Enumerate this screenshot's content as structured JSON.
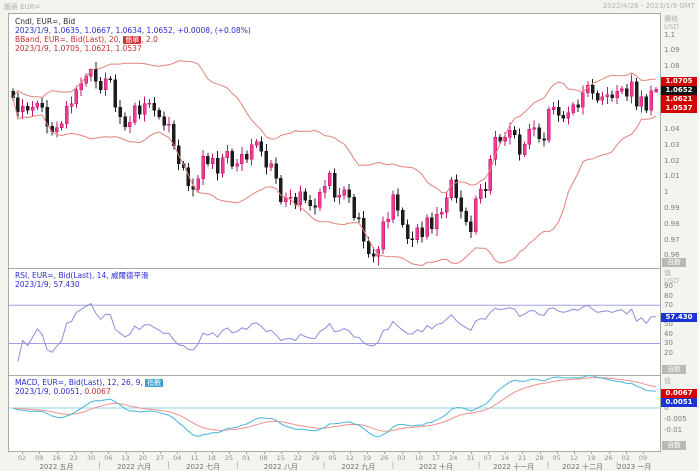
{
  "window": {
    "title_left": "圖表 EUR=",
    "title_right": "2022/4/26 - 2023/1/9 GMT"
  },
  "colors": {
    "up_fill": "#ee3a92",
    "up_stroke": "#c01570",
    "down": "#1c1c1c",
    "bband_line": "#e4837b",
    "rsi_line": "#8c8cdf",
    "rsi_level": "#a0a0e4",
    "macd_line": "#49b6da",
    "macd_signal": "#f0928a",
    "macd_zero": "#8fd4ea",
    "divider": "#a9aba5",
    "badge_red": "#d40000",
    "badge_black": "#141414",
    "badge_blue": "#1a35d4"
  },
  "legends": {
    "main": {
      "line1": "Cndl, EUR=, Bid",
      "line2": "2023/1/9, 1.0635, 1.0667, 1.0634, 1.0652, +0.0008, (+0.08%)",
      "line3_prefix": "BBand, EUR=, Bid(Last), 20, ",
      "line3_chip": "簡單",
      "line3_suffix": ", 2.0",
      "line4": "2023/1/9, 1.0705, 1.0621, 1.0537"
    },
    "rsi": {
      "line1": "RSI, EUR=, Bid(Last), 14, 威爾德平滑",
      "line2": "2023/1/9, 57.430"
    },
    "macd": {
      "line1_prefix": "MACD, EUR=, Bid(Last), 12, 26, 9, ",
      "line1_chip": "指數",
      "line2_date": "2023/1/9, ",
      "line2_macd": "0.0051, ",
      "line2_signal": "0.0067"
    }
  },
  "axes": {
    "main": {
      "title": "價格",
      "unit": "USD",
      "auto": "自動",
      "tick_values": [
        1.1,
        1.09,
        1.08,
        1.04,
        1.03,
        1.02,
        1.01,
        1,
        0.99,
        0.98,
        0.97,
        0.96
      ],
      "tick_labels": [
        "1.1",
        "1.09",
        "1.08",
        "1.04",
        "1.03",
        "1.02",
        "1.01",
        "1",
        "0.99",
        "0.98",
        "0.97",
        "0.96"
      ],
      "badges": [
        {
          "value": 1.0705,
          "text": "1.0705",
          "color": "red",
          "name": "bband-upper-badge"
        },
        {
          "value": 1.0652,
          "text": "1.0652",
          "color": "black",
          "name": "last-price-badge"
        },
        {
          "value": 1.0621,
          "text": "1.0621",
          "color": "red",
          "name": "bband-middle-badge"
        },
        {
          "value": 1.0537,
          "text": "1.0537",
          "color": "red",
          "name": "bband-lower-badge"
        }
      ]
    },
    "rsi": {
      "title": "值",
      "unit": "USD",
      "auto": "自動",
      "tick_values": [
        90,
        80,
        70,
        50,
        40,
        30,
        20
      ],
      "tick_labels": [
        "90",
        "80",
        "70",
        "50",
        "40",
        "30",
        "20"
      ],
      "badges": [
        {
          "value": 57.43,
          "text": "57.430",
          "color": "blue",
          "name": "rsi-value-badge"
        }
      ]
    },
    "macd": {
      "title": "值",
      "auto": "自動",
      "tick_values": [
        0,
        -0.005,
        -0.01
      ],
      "tick_labels": [
        "0",
        "-0.005",
        "-0.01"
      ],
      "badges": [
        {
          "value": 0.0067,
          "text": "0.0067",
          "color": "red",
          "name": "macd-signal-badge"
        },
        {
          "value": 0.0051,
          "text": "0.0051",
          "color": "blue",
          "name": "macd-value-badge"
        }
      ]
    }
  },
  "time_axis": {
    "separator": "|",
    "months": [
      {
        "label": "2022 五月",
        "days": [
          "02",
          "09",
          "16",
          "23",
          "30"
        ]
      },
      {
        "label": "2022 六月",
        "days": [
          "06",
          "13",
          "20",
          "27"
        ]
      },
      {
        "label": "2022 七月",
        "days": [
          "04",
          "11",
          "18",
          "25"
        ]
      },
      {
        "label": "2022 八月",
        "days": [
          "01",
          "08",
          "15",
          "22",
          "29"
        ]
      },
      {
        "label": "2022 九月",
        "days": [
          "05",
          "12",
          "19",
          "26"
        ]
      },
      {
        "label": "2022 十月",
        "days": [
          "03",
          "10",
          "17",
          "24",
          "31"
        ]
      },
      {
        "label": "2022 十一月",
        "days": [
          "07",
          "14",
          "21",
          "28"
        ]
      },
      {
        "label": "2022 十二月",
        "days": [
          "05",
          "12",
          "19",
          "26"
        ]
      },
      {
        "label": "2023 一月",
        "days": [
          "02",
          "09"
        ]
      }
    ]
  },
  "chart_data": [
    {
      "type": "candlestick",
      "title": "Cndl, EUR=, Bid",
      "symbol": "EUR=",
      "field": "Bid",
      "date_range": "2022/4/26 - 2023/1/9",
      "last_date": "2023/1/9",
      "last_bar": {
        "open": 1.0635,
        "high": 1.0667,
        "low": 1.0634,
        "close": 1.0652,
        "change": 0.0008,
        "change_pct": 0.08
      },
      "ylim": [
        0.952,
        1.113
      ],
      "yticks": [
        1.1,
        1.09,
        1.08,
        1.07,
        1.06,
        1.05,
        1.04,
        1.03,
        1.02,
        1.01,
        1,
        0.99,
        0.98,
        0.97,
        0.96
      ],
      "first_open": 1.064,
      "closes": [
        1.06,
        1.051,
        1.0545,
        1.052,
        1.054,
        1.0565,
        1.054,
        1.042,
        1.0385,
        1.041,
        1.0435,
        1.0545,
        1.056,
        1.065,
        1.069,
        1.0735,
        1.078,
        1.0705,
        1.065,
        1.072,
        1.0715,
        1.054,
        1.048,
        1.0415,
        1.0445,
        1.055,
        1.0495,
        1.056,
        1.0565,
        1.052,
        1.048,
        1.0425,
        1.043,
        1.0295,
        1.018,
        1.0155,
        1.004,
        1.002,
        1.0085,
        1.023,
        1.018,
        1.0215,
        1.012,
        1.022,
        1.026,
        1.0165,
        1.018,
        1.024,
        1.021,
        1.03,
        1.032,
        1.026,
        1.016,
        1.018,
        1.009,
        0.994,
        0.9965,
        0.997,
        0.992,
        1.0005,
        0.995,
        0.9915,
        0.9905,
        1.0,
        1.004,
        1.012,
        0.997,
        0.998,
        1.0015,
        0.997,
        0.984,
        0.9835,
        0.969,
        0.961,
        0.9594,
        0.964,
        0.9815,
        0.983,
        0.9985,
        0.9885,
        0.9795,
        0.9705,
        0.97,
        0.9775,
        0.972,
        0.984,
        0.977,
        0.986,
        0.9875,
        0.9965,
        1.008,
        0.9965,
        0.988,
        0.9815,
        0.975,
        0.996,
        1.002,
        1.001,
        1.021,
        1.035,
        1.0325,
        1.035,
        1.0395,
        1.0365,
        1.024,
        1.0305,
        1.04,
        1.041,
        1.034,
        1.033,
        1.0525,
        1.054,
        1.049,
        1.047,
        1.0505,
        1.0555,
        1.054,
        1.063,
        1.068,
        1.0628,
        1.0585,
        1.0605,
        1.062,
        1.06,
        1.064,
        1.0655,
        1.061,
        1.07,
        1.0545,
        1.0605,
        1.052,
        1.0645,
        1.0652
      ],
      "wick_base": 0.0018,
      "overrides": {
        "16": {
          "high": 1.0786
        },
        "75": {
          "low": 0.9536
        },
        "132": {
          "open": 1.0635,
          "high": 1.0667,
          "low": 1.0634,
          "close": 1.0652
        }
      },
      "overlays": [
        {
          "type": "bollinger",
          "period": 20,
          "mode": "簡單",
          "stdev": 2.0,
          "last": {
            "upper": 1.0705,
            "middle": 1.0621,
            "lower": 1.0537
          }
        }
      ]
    },
    {
      "type": "line",
      "name": "RSI",
      "title": "RSI, EUR=, Bid(Last), 14, 威爾德平滑",
      "period": 14,
      "smoothing": "威爾德平滑",
      "last_value": 57.43,
      "levels": [
        70,
        30
      ],
      "ylim": [
        -3,
        108
      ],
      "yticks": [
        90,
        80,
        70,
        60,
        50,
        40,
        30,
        20
      ]
    },
    {
      "type": "line",
      "name": "MACD",
      "title": "MACD, EUR=, Bid(Last), 12, 26, 9, 指數",
      "params": [
        12,
        26,
        9
      ],
      "ma_type": "指數",
      "last_macd": 0.0051,
      "last_signal": 0.0067,
      "zero_line": 0,
      "ylim": [
        -0.0195,
        0.0145
      ],
      "yticks": [
        0,
        -0.005,
        -0.01
      ]
    }
  ]
}
